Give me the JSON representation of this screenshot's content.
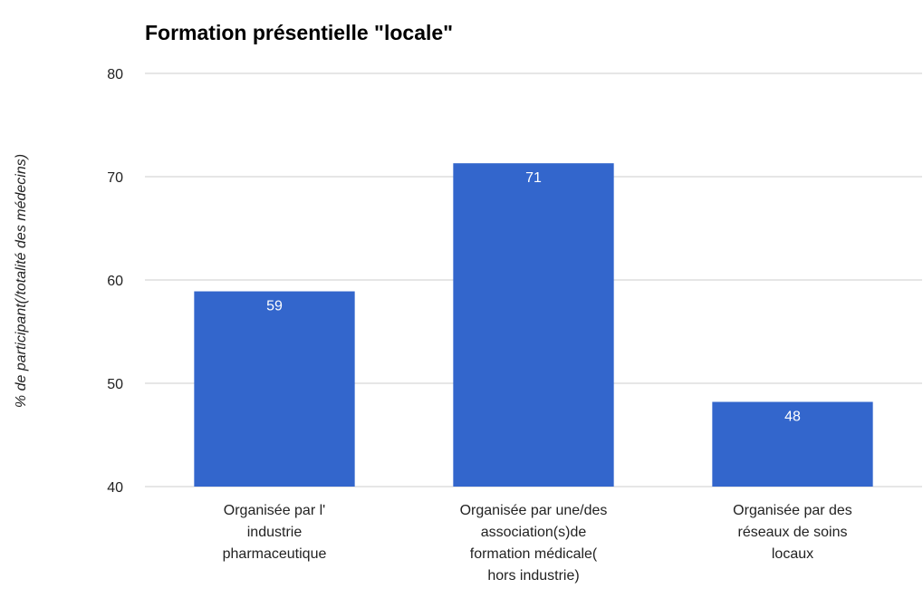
{
  "chart_data": {
    "type": "bar",
    "title": "Formation présentielle \"locale\"",
    "y_label": "% de participant(/totalité des médecins)",
    "categories": [
      "Organisée par l'\nindustrie\npharmaceutique",
      "Organisée par une/des\nassociation(s)de\nformation médicale(\nhors industrie)",
      "Organisée par des\nréseaux de soins\nlocaux"
    ],
    "values": [
      58.9,
      71.3,
      48.2
    ],
    "value_labels": [
      "59",
      "71",
      "48"
    ],
    "color": "#3366cc",
    "ylim": [
      40,
      80
    ],
    "yticks": [
      40,
      50,
      60,
      70,
      80
    ],
    "grid": true
  }
}
